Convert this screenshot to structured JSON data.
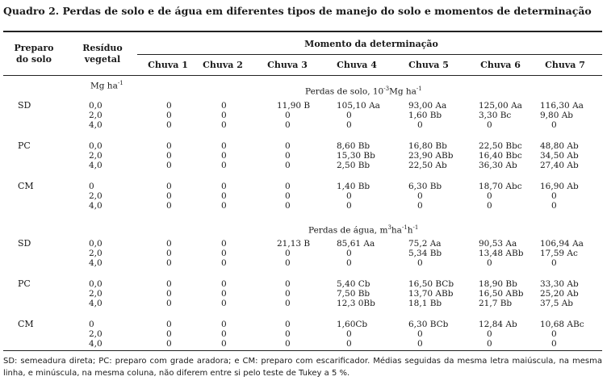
{
  "title": "Quadro 2. Perdas de solo e de água em diferentes tipos de manejo do solo e momentos de determinação",
  "headers": {
    "preparo": [
      "Preparo",
      "do solo"
    ],
    "residuo": [
      "Resíduo",
      "vegetal"
    ],
    "momento": "Momento da determinação",
    "chuvas": [
      "Chuva 1",
      "Chuva 2",
      "Chuva 3",
      "Chuva 4",
      "Chuva 5",
      "Chuva 6",
      "Chuva 7"
    ]
  },
  "units": {
    "residuo": "Mg ha",
    "residuo_sup": "-1",
    "solo_base": "Perdas de solo, 10",
    "solo_sup1": "-3",
    "solo_mid": "Mg ha",
    "solo_sup2": "-1",
    "agua_base": "Perdas de água, m",
    "agua_sup1": "3",
    "agua_mid1": "ha",
    "agua_sup2": "-1",
    "agua_mid2": "h",
    "agua_sup3": "-1"
  },
  "solo": [
    {
      "prep": "SD",
      "res": "0,0",
      "v": [
        "0",
        "0",
        "11,90 B",
        "105,10 Aa",
        "93,00 Aa",
        "125,00 Aa",
        "116,30 Aa"
      ]
    },
    {
      "prep": "",
      "res": "2,0",
      "v": [
        "0",
        "0",
        "0",
        "0",
        "1,60 Bb",
        "3,30 Bc",
        "9,80 Ab"
      ]
    },
    {
      "prep": "",
      "res": "4,0",
      "v": [
        "0",
        "0",
        "0",
        "0",
        "0",
        "0",
        "0"
      ]
    },
    {
      "prep": "PC",
      "res": "0,0",
      "v": [
        "0",
        "0",
        "0",
        "8,60 Bb",
        "16,80 Bb",
        "22,50 Bbc",
        "48,80 Ab"
      ]
    },
    {
      "prep": "",
      "res": "2,0",
      "v": [
        "0",
        "0",
        "0",
        "15,30 Bb",
        "23,90 ABb",
        "16,40 Bbc",
        "34,50 Ab"
      ]
    },
    {
      "prep": "",
      "res": "4,0",
      "v": [
        "0",
        "0",
        "0",
        "2,50 Bb",
        "22,50 Ab",
        "36,30 Ab",
        "27,40 Ab"
      ]
    },
    {
      "prep": "CM",
      "res": "0",
      "v": [
        "0",
        "0",
        "0",
        "1,40 Bb",
        "6,30 Bb",
        "18,70 Abc",
        "16,90 Ab"
      ]
    },
    {
      "prep": "",
      "res": "2,0",
      "v": [
        "0",
        "0",
        "0",
        "0",
        "0",
        "0",
        "0"
      ]
    },
    {
      "prep": "",
      "res": "4,0",
      "v": [
        "0",
        "0",
        "0",
        "0",
        "0",
        "0",
        "0"
      ]
    }
  ],
  "agua": [
    {
      "prep": "SD",
      "res": "0,0",
      "v": [
        "0",
        "0",
        "21,13 B",
        "85,61 Aa",
        "75,2 Aa",
        "90,53 Aa",
        "106,94 Aa"
      ]
    },
    {
      "prep": "",
      "res": "2,0",
      "v": [
        "0",
        "0",
        "0",
        "0",
        "5,34 Bb",
        "13,48 ABb",
        "17,59 Ac"
      ]
    },
    {
      "prep": "",
      "res": "4,0",
      "v": [
        "0",
        "0",
        "0",
        "0",
        "0",
        "0",
        "0"
      ]
    },
    {
      "prep": "PC",
      "res": "0,0",
      "v": [
        "0",
        "0",
        "0",
        "5,40 Cb",
        "16,50 BCb",
        "18,90 Bb",
        "33,30 Ab"
      ]
    },
    {
      "prep": "",
      "res": "2,0",
      "v": [
        "0",
        "0",
        "0",
        "7,50 Bb",
        "13,70 ABb",
        "16,50 ABb",
        "25,20 Ab"
      ]
    },
    {
      "prep": "",
      "res": "4,0",
      "v": [
        "0",
        "0",
        "0",
        "12,3 0Bb",
        "18,1 Bb",
        "21,7 Bb",
        "37,5 Ab"
      ]
    },
    {
      "prep": "CM",
      "res": "0",
      "v": [
        "0",
        "0",
        "0",
        "1,60Cb",
        "6,30 BCb",
        "12,84 Ab",
        "10,68 ABc"
      ]
    },
    {
      "prep": "",
      "res": "2,0",
      "v": [
        "0",
        "0",
        "0",
        "0",
        "0",
        "0",
        "0"
      ]
    },
    {
      "prep": "",
      "res": "4,0",
      "v": [
        "0",
        "0",
        "0",
        "0",
        "0",
        "0",
        "0"
      ]
    }
  ],
  "footnote": "SD: semeadura direta; PC: preparo com grade aradora; e CM: preparo com escarificador. Médias seguidas da mesma letra maiúscula, na mesma linha, e minúscula, na mesma coluna, não diferem entre si pelo teste de Tukey a 5 %."
}
